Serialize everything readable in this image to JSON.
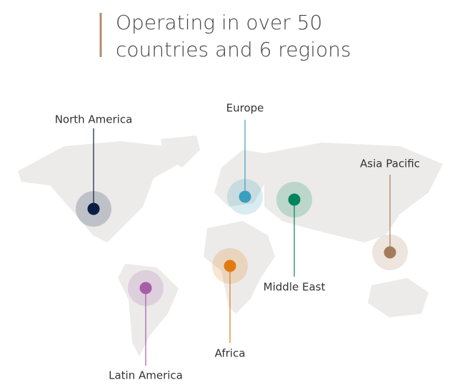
{
  "title": {
    "lines": [
      "Operating in over 50",
      "countries and 6 regions"
    ]
  },
  "regions": [
    {
      "label": "North America",
      "color": "#0b1f44"
    },
    {
      "label": "Europe",
      "color": "#3a9fbf"
    },
    {
      "label": "Middle East",
      "color": "#00845c"
    },
    {
      "label": "Asia Pacific",
      "color": "#a57c5b"
    },
    {
      "label": "Africa",
      "color": "#e07b12"
    },
    {
      "label": "Latin America",
      "color": "#a65ea8"
    }
  ]
}
